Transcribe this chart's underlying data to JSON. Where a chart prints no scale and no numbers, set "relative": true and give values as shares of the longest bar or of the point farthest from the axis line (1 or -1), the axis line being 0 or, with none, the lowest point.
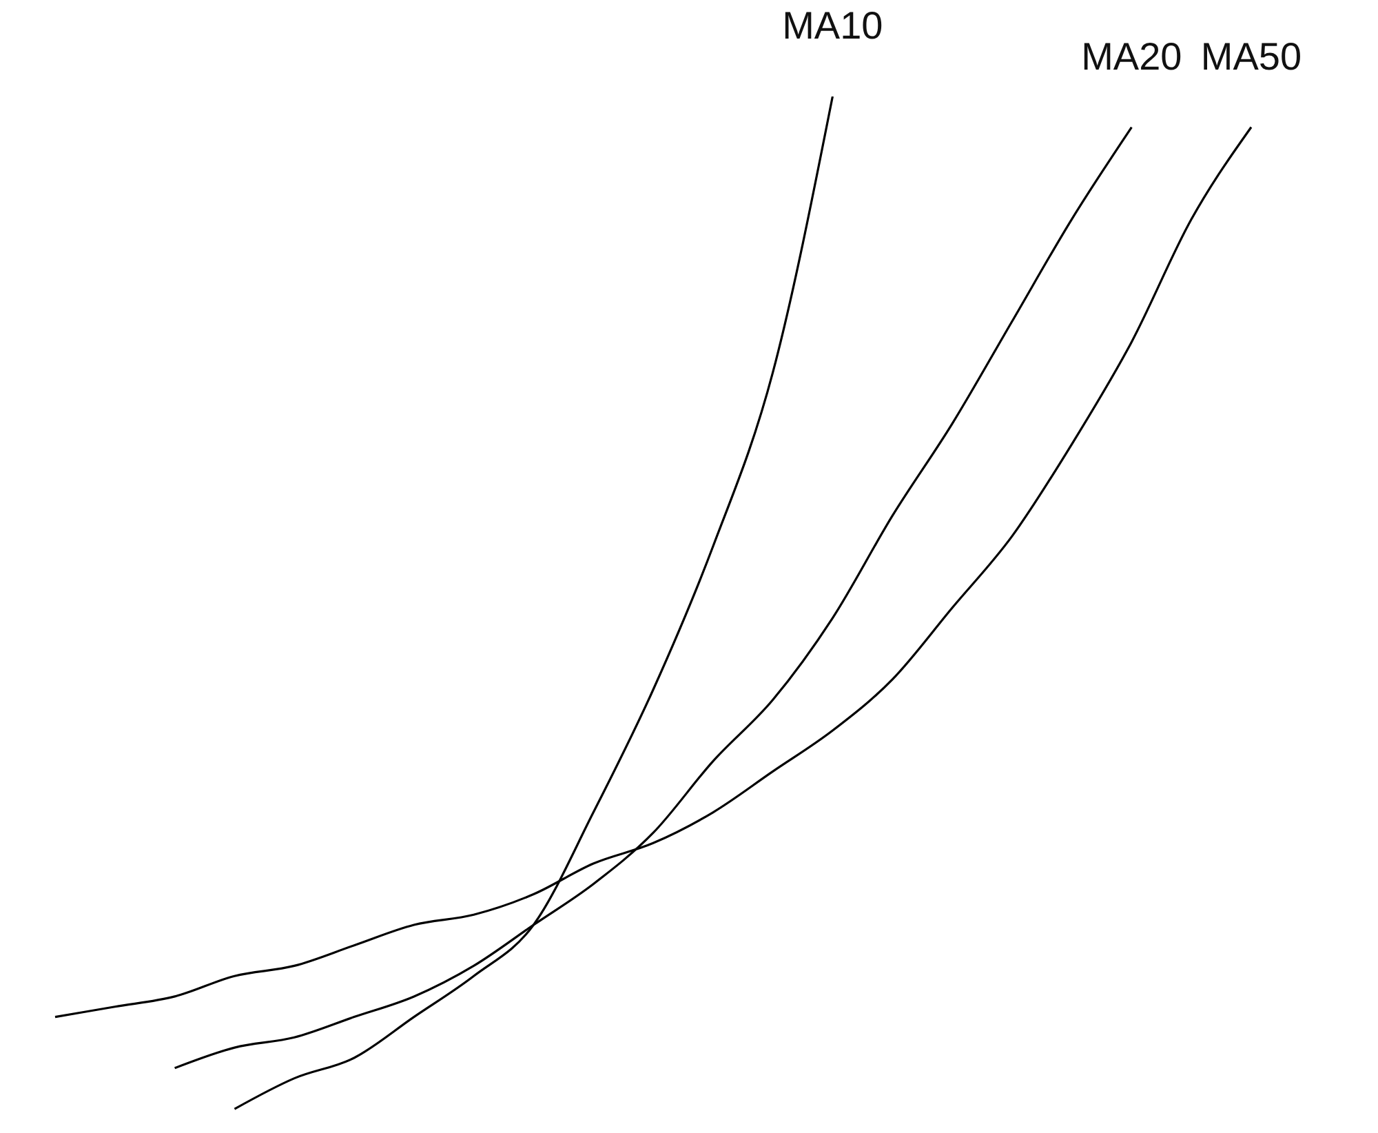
{
  "chart_data": {
    "type": "line",
    "relative": true,
    "marker": "none",
    "line_style": "solid",
    "categories": [
      null,
      null,
      null,
      null,
      null,
      null,
      null,
      null,
      null,
      null,
      null,
      null,
      null,
      null,
      null,
      null,
      null,
      null,
      null,
      null,
      null
    ],
    "series": [
      {
        "name": "MA10",
        "color": "#000000",
        "values": [
          null,
          null,
          null,
          0.01,
          0.04,
          0.06,
          0.1,
          0.14,
          0.19,
          0.3,
          0.42,
          0.56,
          0.73,
          1.0,
          null,
          null,
          null,
          null,
          null,
          null,
          null
        ]
      },
      {
        "name": "MA20",
        "color": "#000000",
        "values": [
          null,
          null,
          0.05,
          0.07,
          0.08,
          0.1,
          0.12,
          0.15,
          0.19,
          0.23,
          0.28,
          0.35,
          0.41,
          0.49,
          0.59,
          0.68,
          0.78,
          0.88,
          0.97,
          null,
          null
        ]
      },
      {
        "name": "MA50",
        "color": "#000000",
        "values": [
          0.1,
          0.11,
          0.12,
          0.14,
          0.15,
          0.17,
          0.19,
          0.2,
          0.22,
          0.25,
          0.27,
          0.3,
          0.34,
          0.38,
          0.43,
          0.5,
          0.57,
          0.66,
          0.76,
          0.88,
          0.97
        ]
      }
    ]
  }
}
